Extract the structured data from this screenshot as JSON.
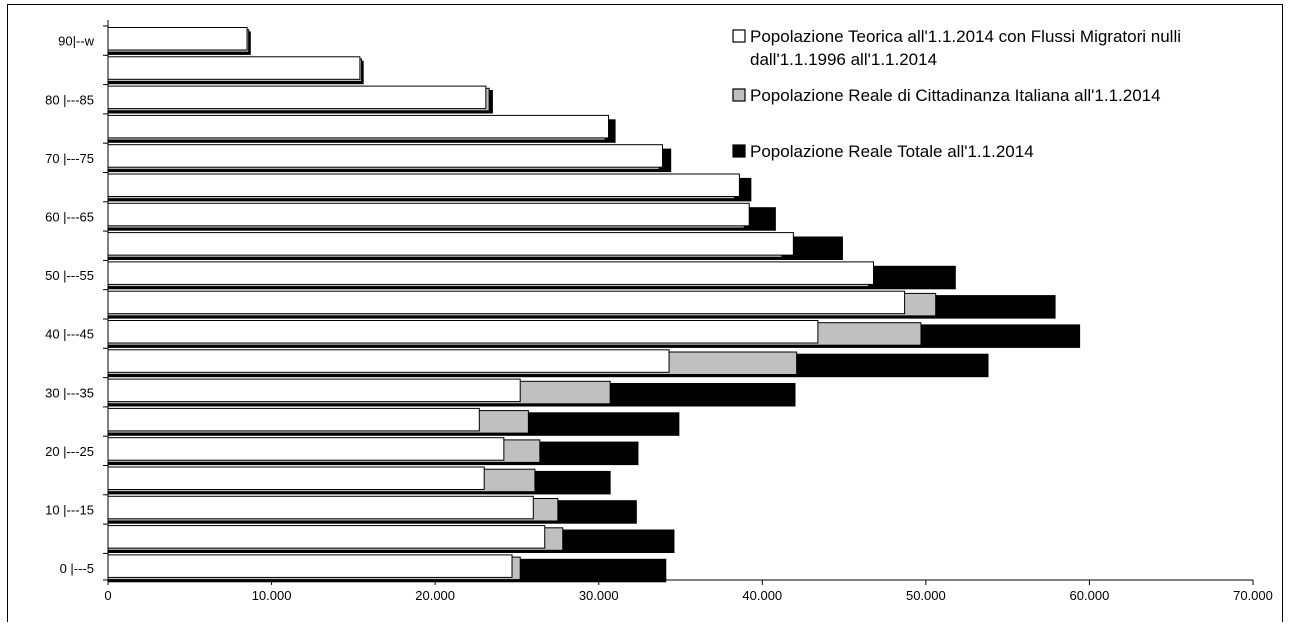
{
  "chart_data": {
    "type": "bar",
    "orientation": "horizontal",
    "categories": [
      "0 |---5",
      "",
      "10 |---15",
      "",
      "20 |---25",
      "",
      "30 |---35",
      "",
      "40 |---45",
      "",
      "50 |---55",
      "",
      "60 |---65",
      "",
      "70 |---75",
      "",
      "80 |---85",
      "",
      "90|--w"
    ],
    "series": [
      {
        "name": "Popolazione Teorica all'1.1.2014 con Flussi Migratori nulli dall'1.1.1996 all'1.1.2014",
        "color": "#ffffff",
        "values": [
          24700,
          26700,
          26000,
          23000,
          24200,
          22700,
          25200,
          34300,
          43400,
          48700,
          46800,
          41900,
          39200,
          38600,
          33900,
          30600,
          23100,
          15400,
          8500
        ]
      },
      {
        "name": "Popolazione Reale di Cittadinanza Italiana all'1.1.2014",
        "color": "#c0c0c0",
        "values": [
          25200,
          27800,
          27500,
          26100,
          26400,
          25700,
          30700,
          42100,
          49700,
          50600,
          46500,
          41200,
          38900,
          38300,
          33700,
          30400,
          23300,
          15500,
          8600
        ]
      },
      {
        "name": "Popolazione Reale Totale all'1.1.2014",
        "color": "#000000",
        "values": [
          34100,
          34600,
          32300,
          30700,
          32400,
          34900,
          42000,
          53800,
          59400,
          57900,
          51800,
          44900,
          40800,
          39300,
          34400,
          31000,
          23500,
          15600,
          8700
        ]
      }
    ],
    "xlim": [
      0,
      70000
    ],
    "xticks": [
      "0",
      "10.000",
      "20.000",
      "30.000",
      "40.000",
      "50.000",
      "60.000",
      "70.000"
    ],
    "legend": {
      "position": "top-right",
      "entries": [
        {
          "lines": [
            "Popolazione Teorica all'1.1.2014 con Flussi Migratori nulli",
            "dall'1.1.1996 all'1.1.2014"
          ],
          "color": "#ffffff"
        },
        {
          "lines": [
            "Popolazione Reale di Cittadinanza Italiana all'1.1.2014"
          ],
          "color": "#c0c0c0"
        },
        {
          "lines": [
            "Popolazione Reale Totale all'1.1.2014"
          ],
          "color": "#000000"
        }
      ]
    },
    "grid": false
  }
}
